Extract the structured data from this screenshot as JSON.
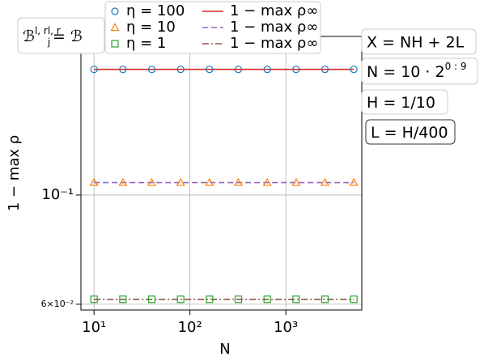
{
  "chart_data": {
    "type": "line",
    "xscale": "log",
    "yscale": "log",
    "grid": true,
    "xlabel": "N",
    "ylabel": "1 − max ρ",
    "x": [
      10,
      20,
      40,
      80,
      160,
      320,
      640,
      1280,
      2560,
      5120
    ],
    "xlim": [
      7.3,
      6200
    ],
    "ylim": [
      0.0584,
      0.21
    ],
    "xticks": [
      {
        "value": 10,
        "label": "10¹"
      },
      {
        "value": 100,
        "label": "10²"
      },
      {
        "value": 1000,
        "label": "10³"
      }
    ],
    "yticks": [
      {
        "value": 0.06,
        "label": "6×10⁻²"
      },
      {
        "value": 0.1,
        "label": "10⁻¹"
      }
    ],
    "legend": "upper center outside",
    "series": [
      {
        "name": "η = 100",
        "color": "#1f77b4",
        "marker": "circle",
        "linestyle": "none",
        "values": [
          0.18,
          0.18,
          0.18,
          0.18,
          0.18,
          0.18,
          0.18,
          0.18,
          0.18,
          0.18
        ]
      },
      {
        "name": "η = 10",
        "color": "#ff7f0e",
        "marker": "triangle",
        "linestyle": "none",
        "values": [
          0.106,
          0.106,
          0.106,
          0.106,
          0.106,
          0.106,
          0.106,
          0.106,
          0.106,
          0.106
        ]
      },
      {
        "name": "η = 1",
        "color": "#2ca02c",
        "marker": "square",
        "linestyle": "none",
        "values": [
          0.0614,
          0.0614,
          0.0614,
          0.0614,
          0.0614,
          0.0614,
          0.0614,
          0.0614,
          0.0614,
          0.0614
        ]
      },
      {
        "name": "1 − max ρ∞",
        "color": "#d62728",
        "marker": "none",
        "linestyle": "solid",
        "values": [
          0.18,
          0.18,
          0.18,
          0.18,
          0.18,
          0.18,
          0.18,
          0.18,
          0.18,
          0.18
        ]
      },
      {
        "name": "1 − max ρ∞",
        "color": "#9467bd",
        "marker": "none",
        "linestyle": "dashed",
        "values": [
          0.106,
          0.106,
          0.106,
          0.106,
          0.106,
          0.106,
          0.106,
          0.106,
          0.106,
          0.106
        ]
      },
      {
        "name": "1 − max ρ∞",
        "color": "#8c564b",
        "marker": "none",
        "linestyle": "dashdot",
        "values": [
          0.0614,
          0.0614,
          0.0614,
          0.0614,
          0.0614,
          0.0614,
          0.0614,
          0.0614,
          0.0614,
          0.0614
        ]
      }
    ],
    "annotations": [
      [
        {
          "t": "ℬ"
        },
        {
          "sup": "l, r"
        },
        {
          "t": " = ℬ"
        },
        {
          "sub": "j"
        },
        {
          "sup": "l, r"
        }
      ],
      [
        {
          "t": "X = NH + 2L"
        }
      ],
      [
        {
          "t": "N = 10 · 2"
        },
        {
          "sup": "0 : 9"
        }
      ],
      [
        {
          "t": "H = 1/10"
        }
      ],
      [
        {
          "t": "L = H/400"
        }
      ]
    ]
  }
}
